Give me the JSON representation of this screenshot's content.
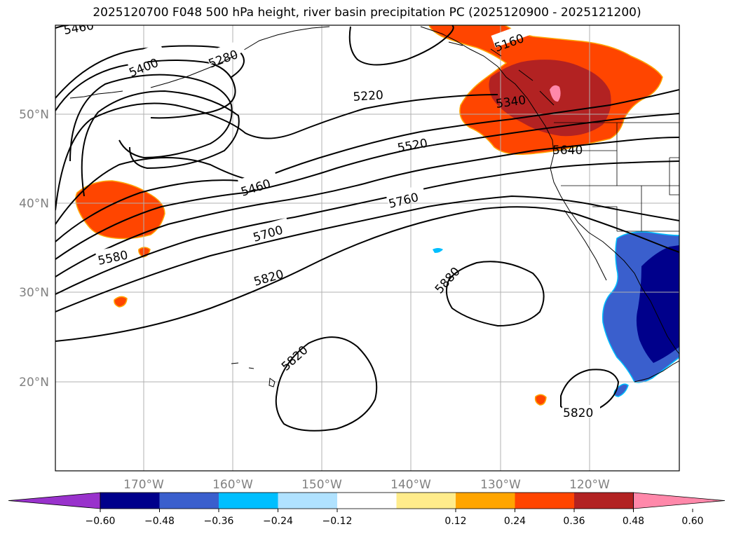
{
  "title": "2025120700 F048 500 hPa height, river basin precipitation PC (2025120900 - 2025121200)",
  "lat_labels": [
    "50°N",
    "40°N",
    "30°N",
    "20°N"
  ],
  "lon_labels": [
    "170°W",
    "160°W",
    "150°W",
    "140°W",
    "130°W",
    "120°W"
  ],
  "contour_labels": [
    "5460",
    "5400",
    "5280",
    "5160",
    "5220",
    "5340",
    "5520",
    "5640",
    "5460",
    "5760",
    "5700",
    "5580",
    "5820",
    "5880",
    "5820",
    "5820"
  ],
  "colorbar": {
    "ticks": [
      "−0.60",
      "−0.48",
      "−0.36",
      "−0.24",
      "−0.12",
      "0.12",
      "0.24",
      "0.36",
      "0.48",
      "0.60"
    ],
    "colors": [
      "#9932cc",
      "#00008b",
      "#3a5fcd",
      "#00bfff",
      "#b0e2ff",
      "#ffffff",
      "#ffec8b",
      "#ffa500",
      "#ff4500",
      "#b22222",
      "#ff88aa"
    ]
  }
}
